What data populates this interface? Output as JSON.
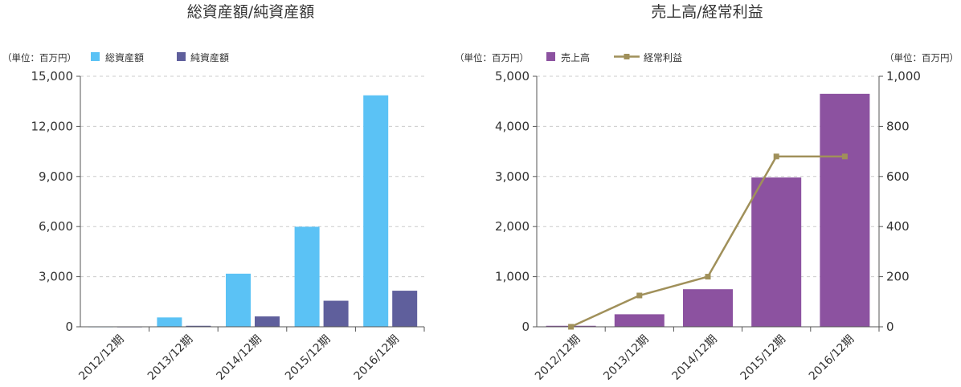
{
  "chart_data": [
    {
      "type": "bar",
      "title": "総資産額/純資産額",
      "unit_label": "（単位：百万円）",
      "categories": [
        "2012/12期",
        "2013/12期",
        "2014/12期",
        "2015/12期",
        "2016/12期"
      ],
      "series": [
        {
          "name": "総資産額",
          "color": "#5bc2f5",
          "values": [
            10,
            560,
            3180,
            5990,
            13860
          ]
        },
        {
          "name": "純資産額",
          "color": "#5f5f9c",
          "values": [
            5,
            60,
            620,
            1560,
            2160
          ]
        }
      ],
      "ylim": [
        0,
        15000
      ],
      "yticks": [
        "0",
        "3,000",
        "6,000",
        "9,000",
        "12,000",
        "15,000"
      ],
      "grid": true,
      "legend_position": "top-left"
    },
    {
      "type": "bar",
      "title": "売上高/経常利益",
      "unit_label_left": "（単位：百万円）",
      "unit_label_right": "（単位：百万円）",
      "categories": [
        "2012/12期",
        "2013/12期",
        "2014/12期",
        "2015/12期",
        "2016/12期"
      ],
      "series": [
        {
          "name": "売上高",
          "type": "bar",
          "axis": "left",
          "color": "#8c52a0",
          "values": [
            20,
            250,
            750,
            2980,
            4650
          ]
        },
        {
          "name": "経常利益",
          "type": "line",
          "axis": "right",
          "color": "#a0905a",
          "values": [
            0,
            125,
            200,
            680,
            680
          ]
        }
      ],
      "ylim_left": [
        0,
        5000
      ],
      "yticks_left": [
        "0",
        "1,000",
        "2,000",
        "3,000",
        "4,000",
        "5,000"
      ],
      "ylim_right": [
        0,
        1000
      ],
      "yticks_right": [
        "0",
        "200",
        "400",
        "600",
        "800",
        "1,000"
      ],
      "grid": true,
      "legend_position": "top-left"
    }
  ]
}
